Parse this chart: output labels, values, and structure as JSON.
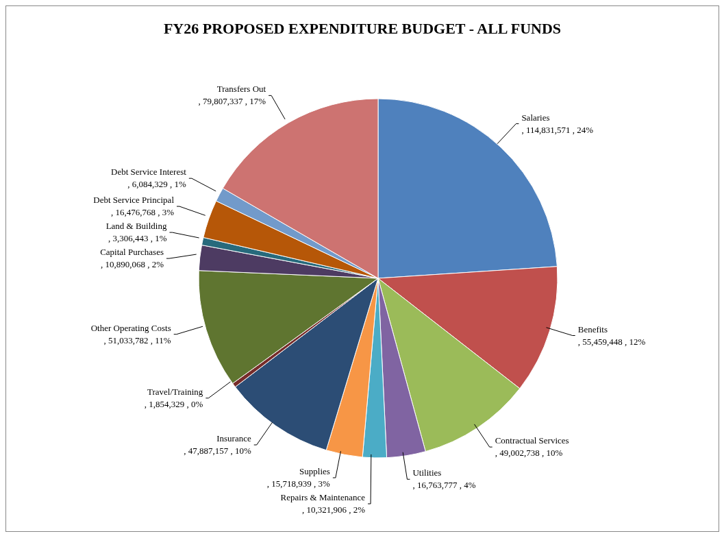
{
  "chart_data": {
    "type": "pie",
    "title": "FY26 PROPOSED EXPENDITURE BUDGET - ALL FUNDS",
    "categories": [
      "Salaries",
      "Benefits",
      "Contractual Services",
      "Utilities",
      "Repairs & Maintenance",
      "Supplies",
      "Insurance",
      "Travel/Training",
      "Other Operating Costs",
      "Capital Purchases",
      "Land & Building",
      "Debt Service Principal",
      "Debt Service Interest",
      "Transfers Out"
    ],
    "values": [
      114831571,
      55459448,
      49002738,
      16763777,
      10321906,
      15718939,
      47887157,
      1854329,
      51033782,
      10890068,
      3306443,
      16476768,
      6084329,
      79807337
    ],
    "value_labels": [
      ", 114,831,571 , 24%",
      ", 55,459,448 , 12%",
      ", 49,002,738 , 10%",
      ", 16,763,777 , 4%",
      ", 10,321,906 , 2%",
      ", 15,718,939 , 3%",
      ", 47,887,157 , 10%",
      ", 1,854,329 , 0%",
      ", 51,033,782 , 11%",
      ", 10,890,068 , 2%",
      ", 3,306,443 , 1%",
      ", 16,476,768 , 3%",
      ", 6,084,329 , 1%",
      ", 79,807,337 , 17%"
    ],
    "colors": [
      "#4f81bd",
      "#c0504d",
      "#9bbb59",
      "#8064a2",
      "#4bacc6",
      "#f79646",
      "#2c4d75",
      "#772c2a",
      "#5f7530",
      "#4d3b62",
      "#276a7c",
      "#b65708",
      "#729aca",
      "#cd7371"
    ],
    "legend": false
  }
}
